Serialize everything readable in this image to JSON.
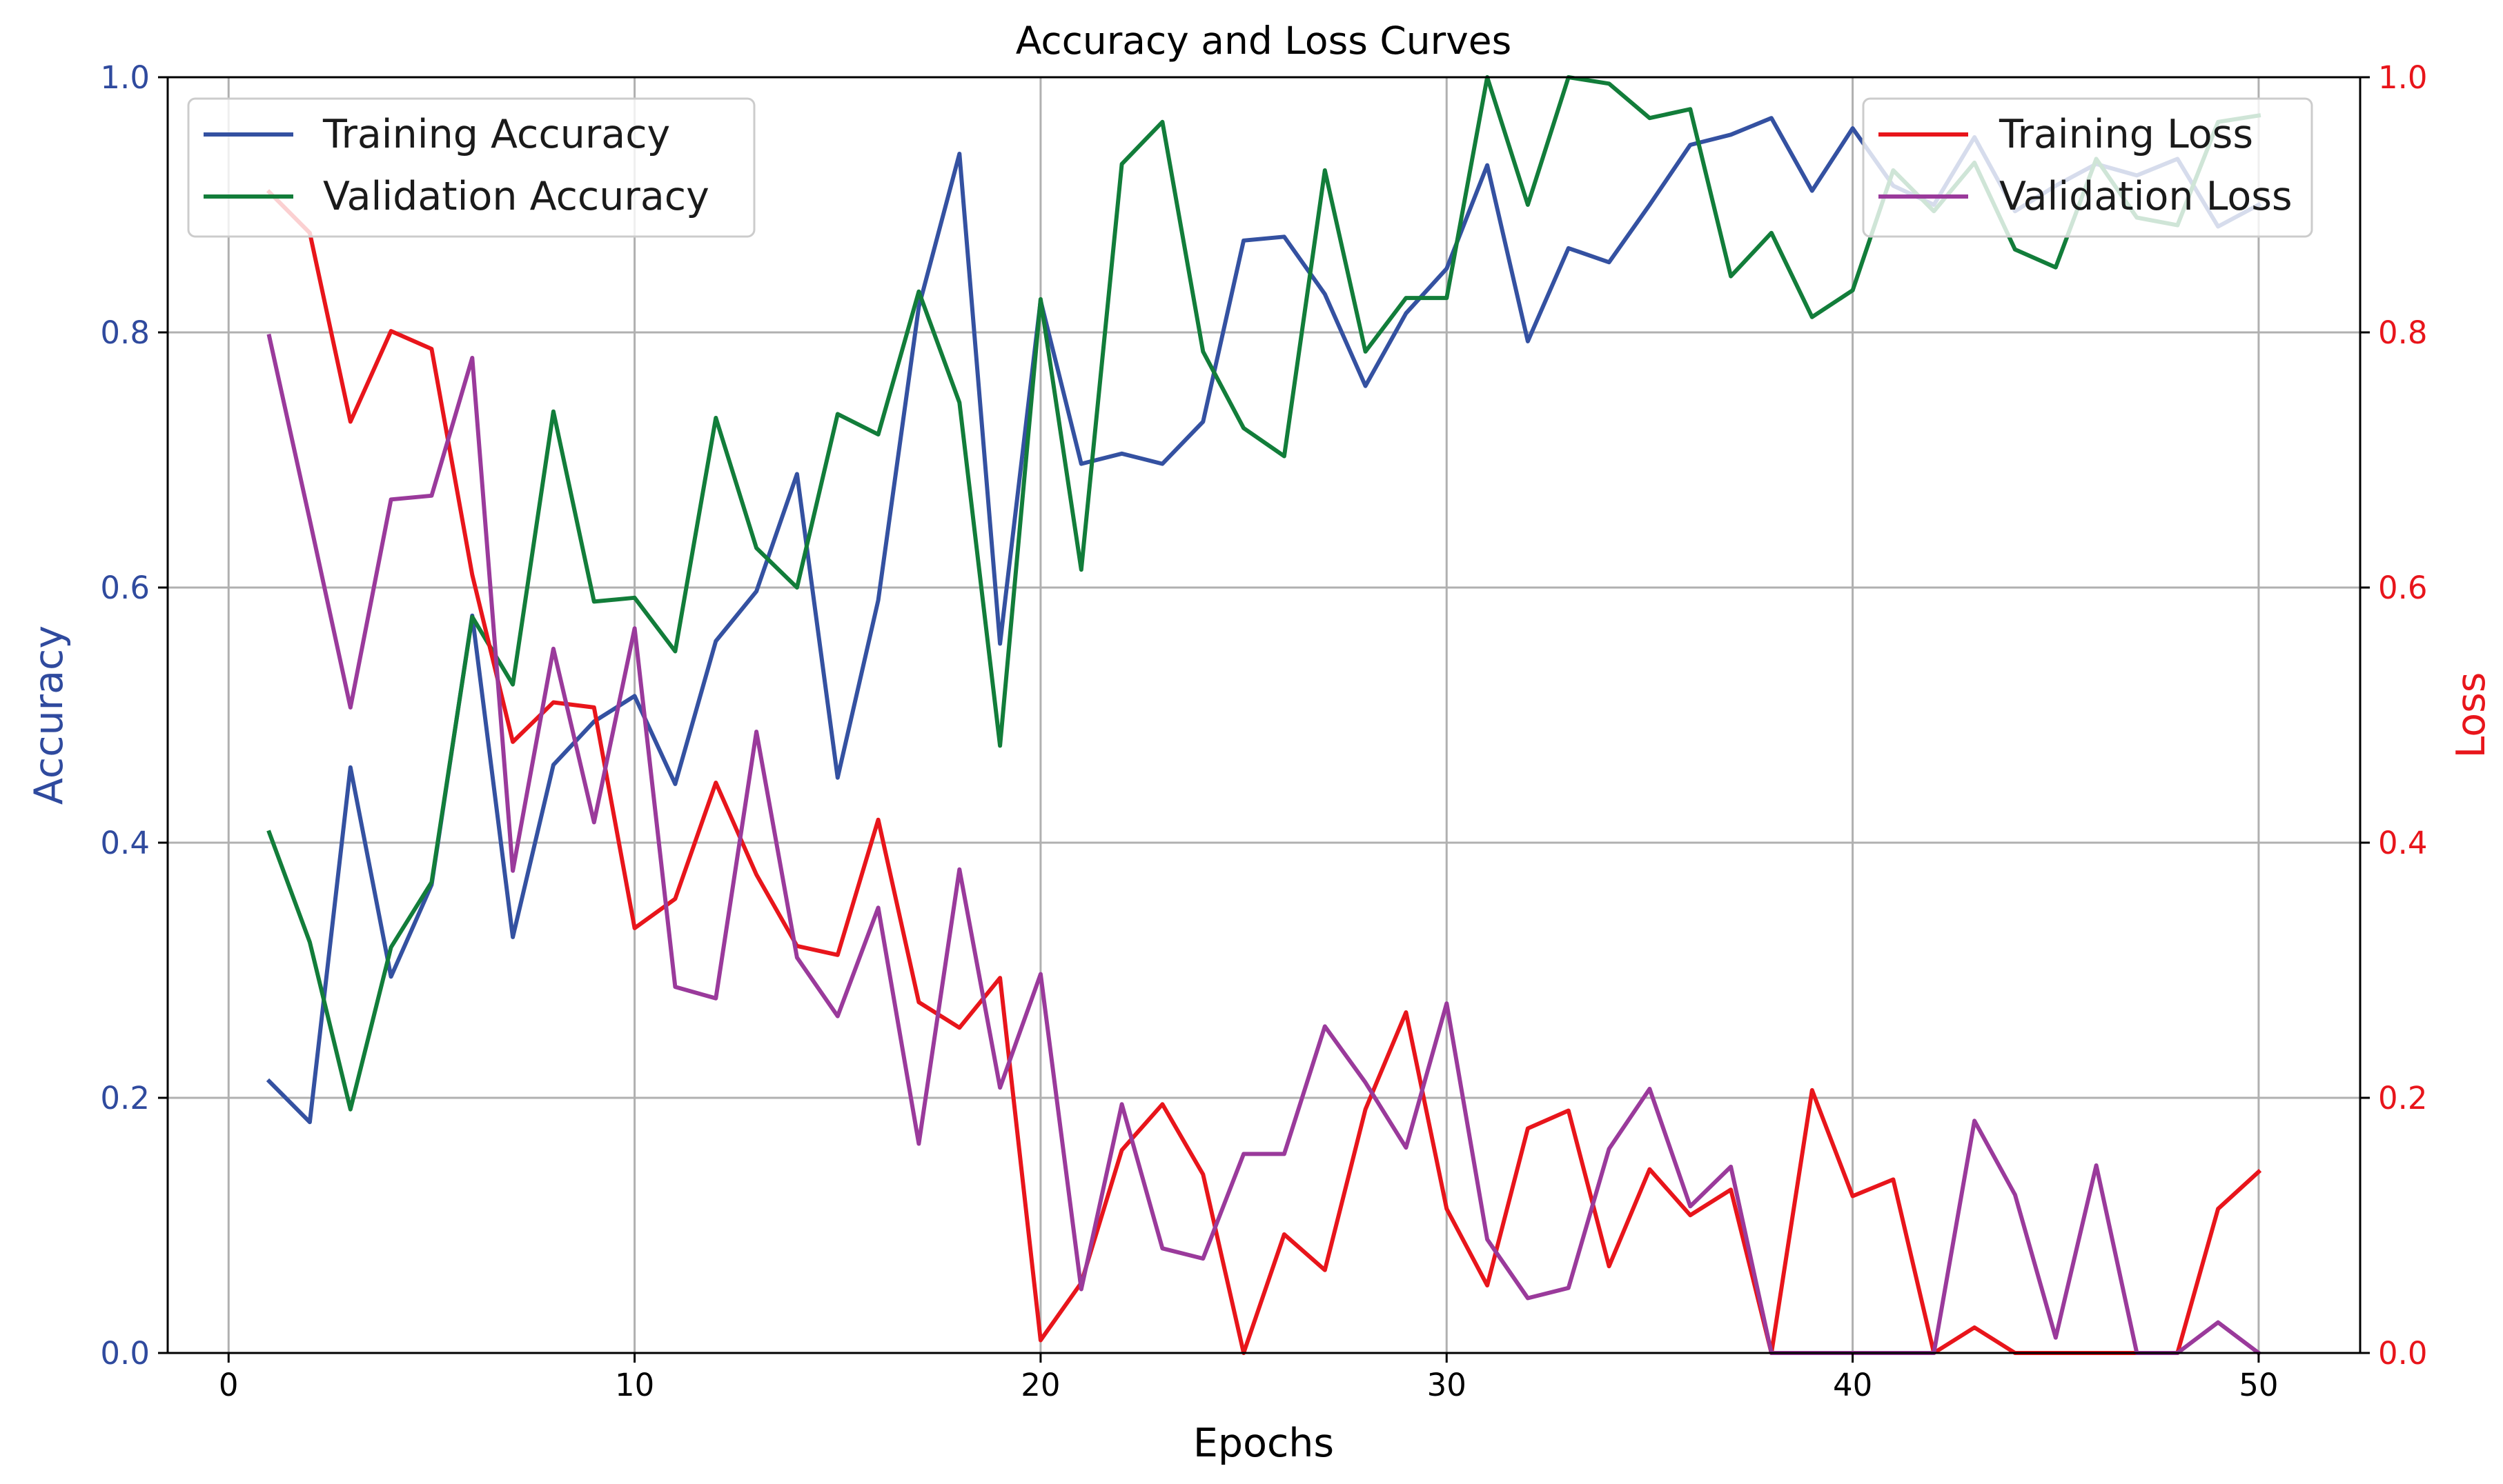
{
  "chart_data": {
    "type": "line",
    "title": "Accuracy and Loss Curves",
    "xlabel": "Epochs",
    "ylabel_left": "Accuracy",
    "ylabel_right": "Loss",
    "xlim": [
      -1.5,
      52.5
    ],
    "ylim_left": [
      0,
      1
    ],
    "ylim_right": [
      0,
      1
    ],
    "x_ticks": [
      0,
      10,
      20,
      30,
      40,
      50
    ],
    "x_tick_labels": [
      "0",
      "10",
      "20",
      "30",
      "40",
      "50"
    ],
    "y_ticks": [
      0,
      0.2,
      0.4,
      0.6,
      0.8,
      1.0
    ],
    "y_tick_labels_left": [
      "0.0",
      "0.2",
      "0.4",
      "0.6",
      "0.8",
      "1.0"
    ],
    "y_tick_labels_right": [
      "0.0",
      "0.2",
      "0.4",
      "0.6",
      "0.8",
      "1.0"
    ],
    "grid": true,
    "left_axis_color": "#2f4a9e",
    "right_axis_color": "#e8151b",
    "legends": {
      "left": {
        "position": "upper-left",
        "entries": [
          "Training Accuracy",
          "Validation Accuracy"
        ]
      },
      "right": {
        "position": "upper-right",
        "entries": [
          "Training Loss",
          "Validation Loss"
        ]
      }
    },
    "x": [
      1,
      2,
      3,
      4,
      5,
      6,
      7,
      8,
      9,
      10,
      11,
      12,
      13,
      14,
      15,
      16,
      17,
      18,
      19,
      20,
      21,
      22,
      23,
      24,
      25,
      26,
      27,
      28,
      29,
      30,
      31,
      32,
      33,
      34,
      35,
      36,
      37,
      38,
      39,
      40,
      41,
      42,
      43,
      44,
      45,
      46,
      47,
      48,
      49,
      50
    ],
    "series": [
      {
        "name": "Training Accuracy",
        "axis": "left",
        "color": "#3451a1",
        "values": [
          0.213,
          0.181,
          0.459,
          0.295,
          0.367,
          0.578,
          0.326,
          0.461,
          0.495,
          0.515,
          0.446,
          0.558,
          0.597,
          0.689,
          0.451,
          0.59,
          0.82,
          0.94,
          0.556,
          0.825,
          0.697,
          0.705,
          0.697,
          0.73,
          0.872,
          0.875,
          0.83,
          0.758,
          0.815,
          0.85,
          0.931,
          0.793,
          0.866,
          0.855,
          0.9,
          0.947,
          0.955,
          0.968,
          0.911,
          0.96,
          0.915,
          0.9,
          0.953,
          0.895,
          0.915,
          0.932,
          0.923,
          0.936,
          0.883,
          0.9
        ]
      },
      {
        "name": "Validation Accuracy",
        "axis": "left",
        "color": "#127d3a",
        "values": [
          0.408,
          0.322,
          0.191,
          0.318,
          0.369,
          0.577,
          0.524,
          0.738,
          0.589,
          0.592,
          0.55,
          0.733,
          0.631,
          0.6,
          0.736,
          0.72,
          0.832,
          0.745,
          0.476,
          0.826,
          0.614,
          0.932,
          0.965,
          0.785,
          0.725,
          0.703,
          0.927,
          0.785,
          0.827,
          0.827,
          1.0,
          0.9,
          1.0,
          0.995,
          0.968,
          0.975,
          0.844,
          0.878,
          0.812,
          0.833,
          0.927,
          0.895,
          0.933,
          0.865,
          0.851,
          0.936,
          0.89,
          0.884,
          0.965,
          0.97
        ]
      },
      {
        "name": "Training Loss",
        "axis": "right",
        "color": "#e8151b",
        "values": [
          0.91,
          0.878,
          0.73,
          0.801,
          0.787,
          0.61,
          0.479,
          0.51,
          0.506,
          0.333,
          0.356,
          0.447,
          0.375,
          0.319,
          0.312,
          0.418,
          0.275,
          0.255,
          0.294,
          0.01,
          0.055,
          0.159,
          0.195,
          0.14,
          0.0,
          0.093,
          0.065,
          0.191,
          0.267,
          0.113,
          0.053,
          0.176,
          0.19,
          0.068,
          0.144,
          0.108,
          0.128,
          0.0,
          0.206,
          0.123,
          0.136,
          0.0,
          0.02,
          0.0,
          0.0,
          0.0,
          0.0,
          0.0,
          0.113,
          0.142
        ]
      },
      {
        "name": "Validation Loss",
        "axis": "right",
        "color": "#9a3a9b",
        "values": [
          0.797,
          0.653,
          0.506,
          0.669,
          0.672,
          0.78,
          0.378,
          0.552,
          0.416,
          0.568,
          0.287,
          0.278,
          0.487,
          0.31,
          0.264,
          0.349,
          0.164,
          0.379,
          0.208,
          0.297,
          0.05,
          0.195,
          0.082,
          0.074,
          0.156,
          0.156,
          0.256,
          0.212,
          0.161,
          0.274,
          0.089,
          0.043,
          0.051,
          0.16,
          0.207,
          0.115,
          0.146,
          0.0,
          0.0,
          0.0,
          0.0,
          0.0,
          0.182,
          0.124,
          0.012,
          0.147,
          0.0,
          0.0,
          0.024,
          0.0
        ]
      }
    ]
  }
}
